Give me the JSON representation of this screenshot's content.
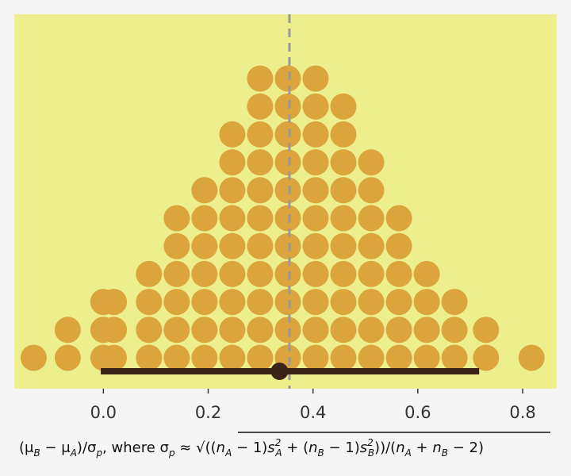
{
  "chart_data": {
    "type": "dotplot",
    "x_ticks": [
      0.0,
      0.2,
      0.4,
      0.6,
      0.8
    ],
    "x_tick_labels": [
      "0.0",
      "0.2",
      "0.4",
      "0.6",
      "0.8"
    ],
    "xlim": [
      -0.17,
      0.865
    ],
    "dot_columns": [
      {
        "x": -0.133,
        "count": 1
      },
      {
        "x": -0.068,
        "count": 2
      },
      {
        "x": 0.0,
        "count": 3
      },
      {
        "x": 0.02,
        "count": 3
      },
      {
        "x": 0.087,
        "count": 4
      },
      {
        "x": 0.14,
        "count": 6
      },
      {
        "x": 0.193,
        "count": 7
      },
      {
        "x": 0.246,
        "count": 9
      },
      {
        "x": 0.299,
        "count": 11
      },
      {
        "x": 0.352,
        "count": 11
      },
      {
        "x": 0.405,
        "count": 11
      },
      {
        "x": 0.458,
        "count": 10
      },
      {
        "x": 0.511,
        "count": 8
      },
      {
        "x": 0.564,
        "count": 6
      },
      {
        "x": 0.617,
        "count": 4
      },
      {
        "x": 0.67,
        "count": 3
      },
      {
        "x": 0.73,
        "count": 2
      },
      {
        "x": 0.817,
        "count": 1
      }
    ],
    "interval": {
      "lower": -0.005,
      "upper": 0.717,
      "point": 0.336
    },
    "reference_line": 0.355,
    "xlabel": "(μB − μA)/σp, where σp ≈ √((nA − 1)s²A + (nB − 1)s²B)/(nA + nB − 2))",
    "xlabel_parts": {
      "open": "(",
      "mu": "μ",
      "minus": " − ",
      "sub_b": "B",
      "sub_a": "A",
      "close_slash": ")/",
      "sigma": "σ",
      "sub_p": "p",
      "where": ", where ",
      "approx": " ≈ ",
      "radical": "√",
      "n": "n",
      "s": "s",
      "two": "2",
      "one": "1"
    },
    "colors": {
      "panel_bg": "#ecef8c",
      "page_bg": "#f5f5f5",
      "dots": "#dba43c",
      "interval": "#3b2417",
      "reference_line": "#999999"
    }
  }
}
